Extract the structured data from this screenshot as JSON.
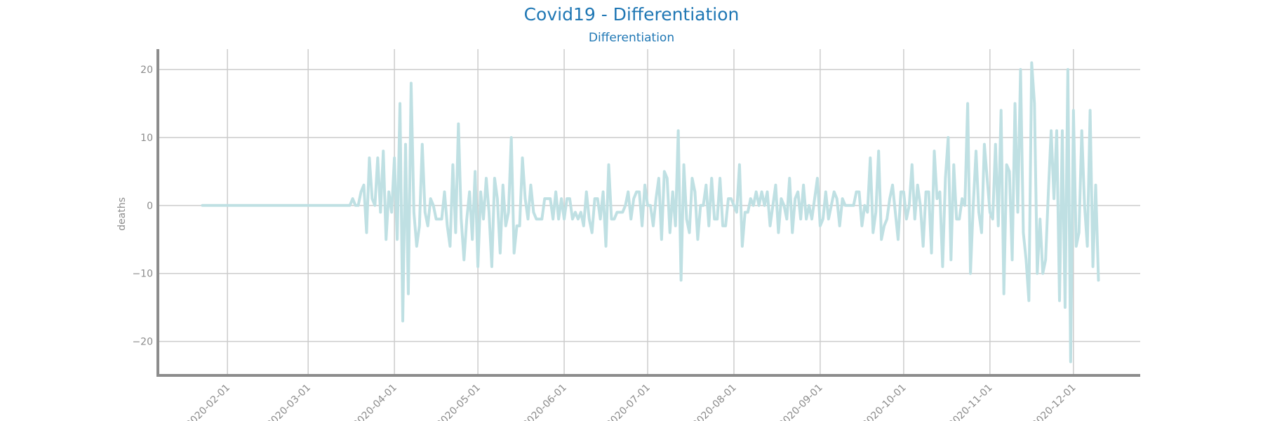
{
  "chart_data": {
    "type": "line",
    "title": "Covid19 - Differentiation",
    "subtitle": "Differentiation",
    "xlabel": "",
    "ylabel": "deaths",
    "ylim": [
      -25,
      23
    ],
    "xlim": [
      "2020-01-07",
      "2020-12-25"
    ],
    "grid": true,
    "colors": {
      "line": "#bfe0e3",
      "grid": "#cccccc",
      "axis": "#8c8c8c",
      "text": "#8c8c8c",
      "title": "#1f77b4"
    },
    "yticks": [
      20,
      10,
      0,
      -10,
      -20
    ],
    "yticklabels": [
      "20",
      "10",
      "0",
      "−10",
      "−20"
    ],
    "xticks": [
      "2020-02-01",
      "2020-03-01",
      "2020-04-01",
      "2020-05-01",
      "2020-06-01",
      "2020-07-01",
      "2020-08-01",
      "2020-09-01",
      "2020-10-01",
      "2020-11-01",
      "2020-12-01"
    ],
    "xticklabels": [
      "2020-02-01",
      "2020-03-01",
      "2020-04-01",
      "2020-05-01",
      "2020-06-01",
      "2020-07-01",
      "2020-08-01",
      "2020-09-01",
      "2020-10-01",
      "2020-11-01",
      "2020-12-01"
    ],
    "series": [
      {
        "start": "2020-01-23",
        "values": [
          0,
          0,
          0,
          0,
          0,
          0,
          0,
          0,
          0,
          0,
          0,
          0,
          0,
          0,
          0,
          0,
          0,
          0,
          0,
          0,
          0,
          0,
          0,
          0,
          0,
          0,
          0,
          0,
          0,
          0,
          0,
          0,
          0,
          0,
          0,
          0,
          0,
          0,
          0,
          0,
          0,
          0,
          0,
          0,
          0,
          0,
          0,
          0,
          0,
          0,
          0,
          0,
          0,
          0,
          1,
          0,
          0,
          2,
          3,
          -4,
          7,
          1,
          0,
          7,
          -1,
          8,
          -5,
          2,
          -1,
          7,
          -5,
          15,
          -17,
          9,
          -13,
          18,
          -1,
          -6,
          -3,
          9,
          -1,
          -3,
          1,
          0,
          -2,
          -2,
          -2,
          2,
          -3,
          -6,
          6,
          -4,
          12,
          -2,
          -8,
          -2,
          2,
          -5,
          5,
          -9,
          2,
          -2,
          4,
          -1,
          -9,
          4,
          1,
          -7,
          3,
          -3,
          -1,
          10,
          -7,
          -3,
          -3,
          7,
          1,
          -2,
          3,
          -1,
          -2,
          -2,
          -2,
          1,
          1,
          1,
          -2,
          2,
          -2,
          1,
          -2,
          1,
          1,
          -2,
          -1,
          -2,
          -1,
          -3,
          2,
          -2,
          -4,
          1,
          1,
          -2,
          2,
          -6,
          6,
          -2,
          -2,
          -1,
          -1,
          -1,
          0,
          2,
          -2,
          1,
          2,
          2,
          -3,
          3,
          0,
          0,
          -3,
          1,
          4,
          -5,
          5,
          4,
          -4,
          2,
          -3,
          11,
          -11,
          6,
          -2,
          -4,
          4,
          2,
          -5,
          0,
          0,
          3,
          -3,
          4,
          -2,
          -2,
          4,
          -3,
          -3,
          1,
          1,
          0,
          -1,
          6,
          -6,
          -1,
          -1,
          1,
          0,
          2,
          0,
          2,
          0,
          2,
          -3,
          0,
          3,
          -4,
          1,
          0,
          -2,
          4,
          -4,
          1,
          2,
          -2,
          3,
          -2,
          0,
          -2,
          1,
          4,
          -3,
          -2,
          2,
          -2,
          0,
          2,
          1,
          -3,
          1,
          0,
          0,
          0,
          0,
          2,
          2,
          -3,
          0,
          -1,
          7,
          -4,
          -1,
          8,
          -5,
          -3,
          -2,
          1,
          3,
          -1,
          -5,
          2,
          2,
          -2,
          0,
          6,
          -2,
          3,
          0,
          -6,
          2,
          2,
          -7,
          8,
          1,
          2,
          -9,
          4,
          10,
          -8,
          6,
          -2,
          -2,
          1,
          0,
          15,
          -10,
          0,
          8,
          -1,
          -4,
          9,
          4,
          -1,
          -2,
          9,
          -3,
          14,
          -13,
          6,
          5,
          -8,
          15,
          -1,
          20,
          -4,
          -8,
          -14,
          21,
          15,
          -10,
          -2,
          -10,
          -8,
          2,
          11,
          1,
          11,
          -14,
          11,
          -15,
          20,
          -23,
          14,
          -6,
          -4,
          11,
          0,
          -6,
          14,
          -9,
          3,
          -11
        ]
      }
    ]
  }
}
